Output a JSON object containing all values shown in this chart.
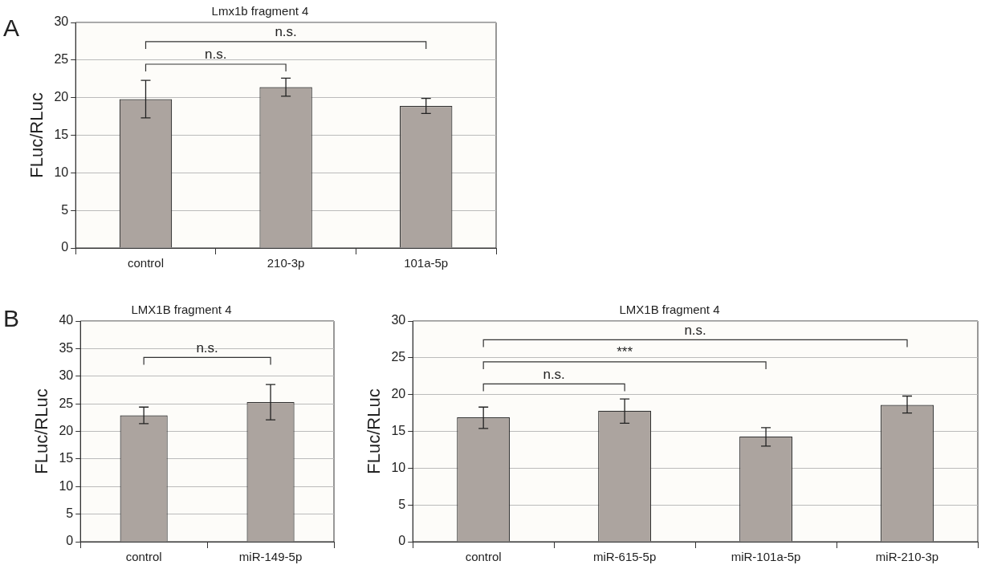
{
  "chart_data": [
    {
      "type": "bar",
      "title": "Lmx1b fragment 4",
      "ylabel": "FLuc/RLuc",
      "categories": [
        "control",
        "210-3p",
        "101a-5p"
      ],
      "values": [
        19.8,
        21.4,
        18.9
      ],
      "errors": [
        [
          17.3,
          22.3
        ],
        [
          20.2,
          22.6
        ],
        [
          17.9,
          19.9
        ]
      ],
      "color": "#aca49f",
      "ylim": [
        0,
        30
      ],
      "yticks": [
        0,
        5,
        10,
        15,
        20,
        25,
        30
      ],
      "grid": "y",
      "annotations": [
        "A",
        "n.s.",
        "n.s."
      ]
    },
    {
      "type": "bar",
      "title": "LMX1B fragment 4",
      "ylabel": "FLuc/RLuc",
      "categories": [
        "control",
        "miR-149-5p"
      ],
      "values": [
        22.9,
        25.3
      ],
      "errors": [
        [
          21.4,
          24.4
        ],
        [
          22.1,
          28.5
        ]
      ],
      "color": "#aca49f",
      "ylim": [
        0,
        40
      ],
      "yticks": [
        0,
        5,
        10,
        15,
        20,
        25,
        30,
        35,
        40
      ],
      "grid": "y",
      "annotations": [
        "B",
        "n.s."
      ]
    },
    {
      "type": "bar",
      "title": "LMX1B fragment 4",
      "ylabel": "FLuc/RLuc",
      "categories": [
        "control",
        "miR-615-5p",
        "miR-101a-5p",
        "miR-210-3p"
      ],
      "values": [
        16.9,
        17.8,
        14.3,
        18.6
      ],
      "errors": [
        [
          15.4,
          18.3
        ],
        [
          16.1,
          19.4
        ],
        [
          13.0,
          15.5
        ],
        [
          17.5,
          19.8
        ]
      ],
      "color": "#aca49f",
      "ylim": [
        0,
        30
      ],
      "yticks": [
        0,
        5,
        10,
        15,
        20,
        25,
        30
      ],
      "grid": "y",
      "annotations": [
        "n.s.",
        "***",
        "n.s."
      ]
    }
  ]
}
